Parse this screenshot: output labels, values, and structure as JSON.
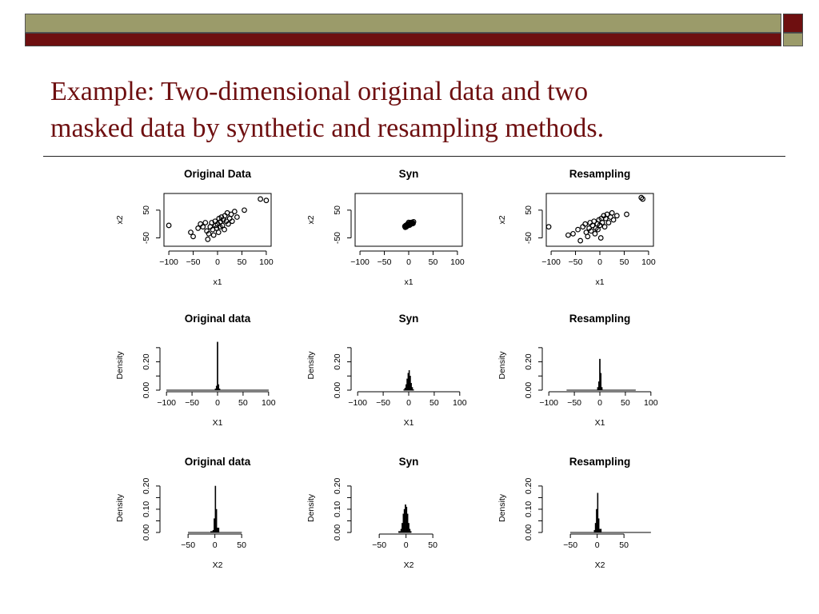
{
  "slide": {
    "title_line1": "Example: Two-dimensional original data and two",
    "title_line2": "masked data by synthetic and resampling methods.",
    "colors": {
      "accent_maroon": "#6e0f10",
      "accent_olive": "#9b9b6a",
      "title_text": "#6e0f10"
    }
  },
  "chart_data": [
    {
      "type": "scatter",
      "title": "Original Data",
      "xlabel": "x1",
      "ylabel": "x2",
      "xlim": [
        -110,
        110
      ],
      "ylim": [
        -80,
        110
      ],
      "xticks": [
        -100,
        -50,
        0,
        50,
        100
      ],
      "yticks": [
        -50,
        50
      ],
      "ytick_labels": [
        "-50",
        "50"
      ],
      "points": [
        [
          -100,
          -5
        ],
        [
          -55,
          -30
        ],
        [
          -50,
          -45
        ],
        [
          -40,
          -15
        ],
        [
          -35,
          0
        ],
        [
          -30,
          -10
        ],
        [
          -25,
          5
        ],
        [
          -22,
          -25
        ],
        [
          -20,
          -55
        ],
        [
          -18,
          -35
        ],
        [
          -15,
          -10
        ],
        [
          -12,
          5
        ],
        [
          -10,
          -20
        ],
        [
          -8,
          -40
        ],
        [
          -5,
          10
        ],
        [
          -4,
          -5
        ],
        [
          -2,
          -15
        ],
        [
          0,
          0
        ],
        [
          2,
          -30
        ],
        [
          3,
          20
        ],
        [
          5,
          -10
        ],
        [
          6,
          8
        ],
        [
          8,
          25
        ],
        [
          10,
          -5
        ],
        [
          12,
          15
        ],
        [
          14,
          -20
        ],
        [
          15,
          30
        ],
        [
          18,
          10
        ],
        [
          20,
          40
        ],
        [
          22,
          0
        ],
        [
          25,
          20
        ],
        [
          28,
          35
        ],
        [
          30,
          10
        ],
        [
          35,
          45
        ],
        [
          40,
          25
        ],
        [
          55,
          50
        ],
        [
          88,
          90
        ],
        [
          100,
          85
        ]
      ]
    },
    {
      "type": "scatter",
      "title": "Syn",
      "xlabel": "x1",
      "ylabel": "x2",
      "xlim": [
        -110,
        110
      ],
      "ylim": [
        -80,
        110
      ],
      "xticks": [
        -100,
        -50,
        0,
        50,
        100
      ],
      "yticks": [
        -50,
        50
      ],
      "ytick_labels": [
        "-50",
        "50"
      ],
      "points": [
        [
          -8,
          -8
        ],
        [
          -6,
          -5
        ],
        [
          -5,
          -10
        ],
        [
          -4,
          -3
        ],
        [
          -3,
          -7
        ],
        [
          -2,
          0
        ],
        [
          -1,
          -5
        ],
        [
          0,
          -2
        ],
        [
          1,
          2
        ],
        [
          2,
          -4
        ],
        [
          3,
          4
        ],
        [
          4,
          0
        ],
        [
          5,
          3
        ],
        [
          6,
          6
        ],
        [
          7,
          1
        ],
        [
          8,
          5
        ],
        [
          10,
          8
        ],
        [
          -7,
          -12
        ],
        [
          0,
          6
        ],
        [
          9,
          2
        ]
      ]
    },
    {
      "type": "scatter",
      "title": "Resampling",
      "xlabel": "x1",
      "ylabel": "x2",
      "xlim": [
        -110,
        110
      ],
      "ylim": [
        -80,
        110
      ],
      "xticks": [
        -100,
        -50,
        0,
        50,
        100
      ],
      "yticks": [
        -50,
        50
      ],
      "ytick_labels": [
        "-50",
        "50"
      ],
      "points": [
        [
          -105,
          -10
        ],
        [
          -65,
          -40
        ],
        [
          -55,
          -35
        ],
        [
          -45,
          -20
        ],
        [
          -40,
          -60
        ],
        [
          -35,
          -10
        ],
        [
          -30,
          0
        ],
        [
          -28,
          -30
        ],
        [
          -25,
          -45
        ],
        [
          -22,
          -15
        ],
        [
          -20,
          5
        ],
        [
          -18,
          -25
        ],
        [
          -15,
          -5
        ],
        [
          -12,
          10
        ],
        [
          -10,
          -35
        ],
        [
          -8,
          -15
        ],
        [
          -5,
          0
        ],
        [
          -4,
          -20
        ],
        [
          -2,
          15
        ],
        [
          0,
          -5
        ],
        [
          2,
          -50
        ],
        [
          3,
          20
        ],
        [
          5,
          5
        ],
        [
          8,
          30
        ],
        [
          10,
          -10
        ],
        [
          12,
          20
        ],
        [
          15,
          35
        ],
        [
          18,
          5
        ],
        [
          22,
          25
        ],
        [
          25,
          40
        ],
        [
          28,
          15
        ],
        [
          35,
          30
        ],
        [
          55,
          35
        ],
        [
          85,
          95
        ],
        [
          88,
          90
        ]
      ]
    },
    {
      "type": "histogram",
      "title": "Original data",
      "xlabel": "X1",
      "ylabel": "Density",
      "xlim": [
        -105,
        105
      ],
      "ylim": [
        0,
        0.35
      ],
      "xticks": [
        -100,
        -50,
        0,
        50,
        100
      ],
      "yticks": [
        0,
        0.1,
        0.2,
        0.3
      ],
      "ytick_labels": [
        "0.00",
        "0.20"
      ],
      "ytick_label_values": [
        0,
        0.2
      ],
      "bins": [
        [
          -100,
          -5,
          0.001
        ],
        [
          -5,
          -3,
          0.01
        ],
        [
          -3,
          -1,
          0.03
        ],
        [
          -1,
          1,
          0.34
        ],
        [
          1,
          3,
          0.04
        ],
        [
          3,
          5,
          0.01
        ],
        [
          5,
          100,
          0.001
        ]
      ]
    },
    {
      "type": "histogram",
      "title": "Syn",
      "xlabel": "X1",
      "ylabel": "Density",
      "xlim": [
        -105,
        105
      ],
      "ylim": [
        0,
        0.35
      ],
      "xticks": [
        -100,
        -50,
        0,
        50,
        100
      ],
      "yticks": [
        0,
        0.1,
        0.2,
        0.3
      ],
      "ytick_labels": [
        "0.00",
        "0.20"
      ],
      "ytick_label_values": [
        0,
        0.2
      ],
      "bins": [
        [
          -10,
          -8,
          0.005
        ],
        [
          -8,
          -6,
          0.015
        ],
        [
          -6,
          -4,
          0.04
        ],
        [
          -4,
          -2,
          0.08
        ],
        [
          -2,
          0,
          0.12
        ],
        [
          0,
          2,
          0.14
        ],
        [
          2,
          4,
          0.1
        ],
        [
          4,
          6,
          0.05
        ],
        [
          6,
          8,
          0.02
        ],
        [
          8,
          10,
          0.005
        ]
      ]
    },
    {
      "type": "histogram",
      "title": "Resampling",
      "xlabel": "X1",
      "ylabel": "Density",
      "xlim": [
        -105,
        105
      ],
      "ylim": [
        0,
        0.35
      ],
      "xticks": [
        -100,
        -50,
        0,
        50,
        100
      ],
      "yticks": [
        0,
        0.1,
        0.2,
        0.3
      ],
      "ytick_labels": [
        "0.00",
        "0.20"
      ],
      "ytick_label_values": [
        0,
        0.2
      ],
      "bins": [
        [
          -65,
          -5,
          0.001
        ],
        [
          -5,
          -3,
          0.02
        ],
        [
          -3,
          -1,
          0.06
        ],
        [
          -1,
          1,
          0.22
        ],
        [
          1,
          3,
          0.12
        ],
        [
          3,
          5,
          0.02
        ],
        [
          5,
          70,
          0.001
        ]
      ]
    },
    {
      "type": "histogram",
      "title": "Original data",
      "xlabel": "X2",
      "ylabel": "Density",
      "xlim": [
        -95,
        105
      ],
      "ylim": [
        0,
        0.21
      ],
      "xticks": [
        -50,
        0,
        50
      ],
      "yticks": [
        0,
        0.05,
        0.1,
        0.15,
        0.2
      ],
      "ytick_labels": [
        "0.00",
        "0.10",
        "0.20"
      ],
      "ytick_label_values": [
        0,
        0.1,
        0.2
      ],
      "bins": [
        [
          -50,
          -8,
          0.001
        ],
        [
          -8,
          -4,
          0.005
        ],
        [
          -4,
          -2,
          0.01
        ],
        [
          -2,
          0,
          0.06
        ],
        [
          0,
          2,
          0.2
        ],
        [
          2,
          4,
          0.1
        ],
        [
          4,
          8,
          0.02
        ],
        [
          8,
          50,
          0.001
        ]
      ]
    },
    {
      "type": "histogram",
      "title": "Syn",
      "xlabel": "X2",
      "ylabel": "Density",
      "xlim": [
        -95,
        105
      ],
      "ylim": [
        0,
        0.21
      ],
      "xticks": [
        -50,
        0,
        50
      ],
      "yticks": [
        0,
        0.05,
        0.1,
        0.15,
        0.2
      ],
      "ytick_labels": [
        "0.00",
        "0.10",
        "0.20"
      ],
      "ytick_label_values": [
        0,
        0.1,
        0.2
      ],
      "bins": [
        [
          -14,
          -10,
          0.005
        ],
        [
          -10,
          -8,
          0.015
        ],
        [
          -8,
          -6,
          0.04
        ],
        [
          -6,
          -4,
          0.08
        ],
        [
          -4,
          -2,
          0.1
        ],
        [
          -2,
          0,
          0.12
        ],
        [
          0,
          2,
          0.11
        ],
        [
          2,
          4,
          0.08
        ],
        [
          4,
          6,
          0.04
        ],
        [
          6,
          8,
          0.015
        ],
        [
          8,
          10,
          0.005
        ]
      ]
    },
    {
      "type": "histogram",
      "title": "Resampling",
      "xlabel": "X2",
      "ylabel": "Density",
      "xlim": [
        -95,
        105
      ],
      "ylim": [
        0,
        0.21
      ],
      "xticks": [
        -50,
        0,
        50
      ],
      "yticks": [
        0,
        0.05,
        0.1,
        0.15,
        0.2
      ],
      "ytick_labels": [
        "0.00",
        "0.10",
        "0.20"
      ],
      "ytick_label_values": [
        0,
        0.1,
        0.2
      ],
      "bins": [
        [
          -50,
          -6,
          0.001
        ],
        [
          -6,
          -4,
          0.01
        ],
        [
          -4,
          -2,
          0.04
        ],
        [
          -2,
          0,
          0.1
        ],
        [
          0,
          2,
          0.17
        ],
        [
          2,
          4,
          0.06
        ],
        [
          4,
          8,
          0.015
        ],
        [
          8,
          100,
          0.001
        ]
      ]
    }
  ]
}
